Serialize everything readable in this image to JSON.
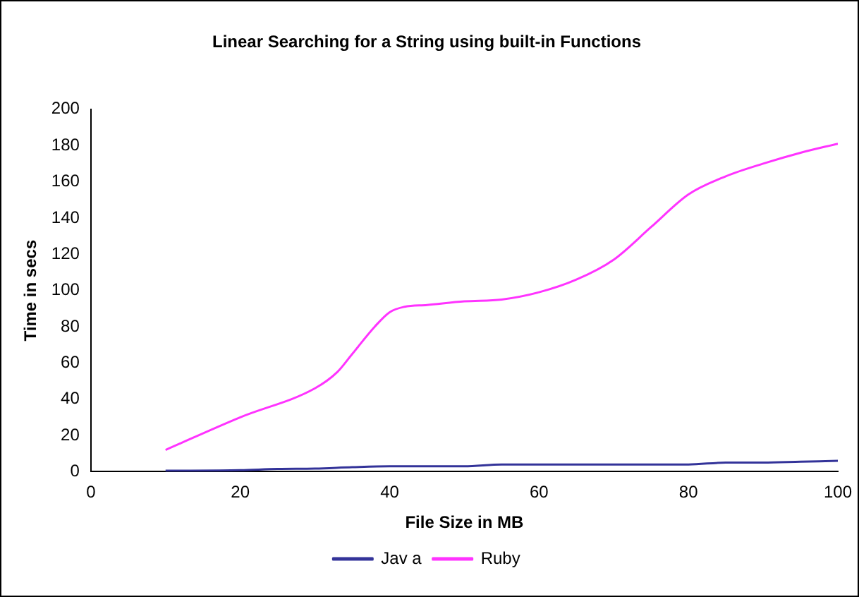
{
  "chart_data": {
    "type": "line",
    "title": "Linear Searching for a String using built-in Functions",
    "xlabel": "File Size in MB",
    "ylabel": "Time in secs",
    "xlim": [
      0,
      100
    ],
    "xticks": [
      0,
      20,
      40,
      60,
      80,
      100
    ],
    "ylim": [
      0,
      200
    ],
    "yticks": [
      0,
      20,
      40,
      60,
      80,
      100,
      120,
      140,
      160,
      180,
      200
    ],
    "grid": false,
    "legend": "bottom",
    "marker": "none",
    "line_style": "solid",
    "series": [
      {
        "name": "Jav a",
        "color": "#333399",
        "x": [
          10,
          20,
          25,
          30,
          35,
          40,
          50,
          55,
          60,
          70,
          80,
          85,
          90,
          95,
          100
        ],
        "values": [
          0.5,
          0.8,
          1.5,
          1.7,
          2.5,
          3,
          3,
          4,
          4,
          4,
          4,
          5,
          5,
          5.5,
          6
        ]
      },
      {
        "name": "Ruby",
        "color": "#ff33ff",
        "x": [
          10,
          20,
          30,
          33,
          35,
          38,
          40,
          42,
          45,
          50,
          55,
          60,
          65,
          70,
          75,
          80,
          85,
          90,
          95,
          100
        ],
        "values": [
          12,
          30,
          46,
          55,
          65,
          80,
          88,
          91,
          92,
          94,
          95,
          99,
          106,
          117,
          135,
          153,
          163,
          170,
          176,
          181
        ]
      }
    ]
  }
}
